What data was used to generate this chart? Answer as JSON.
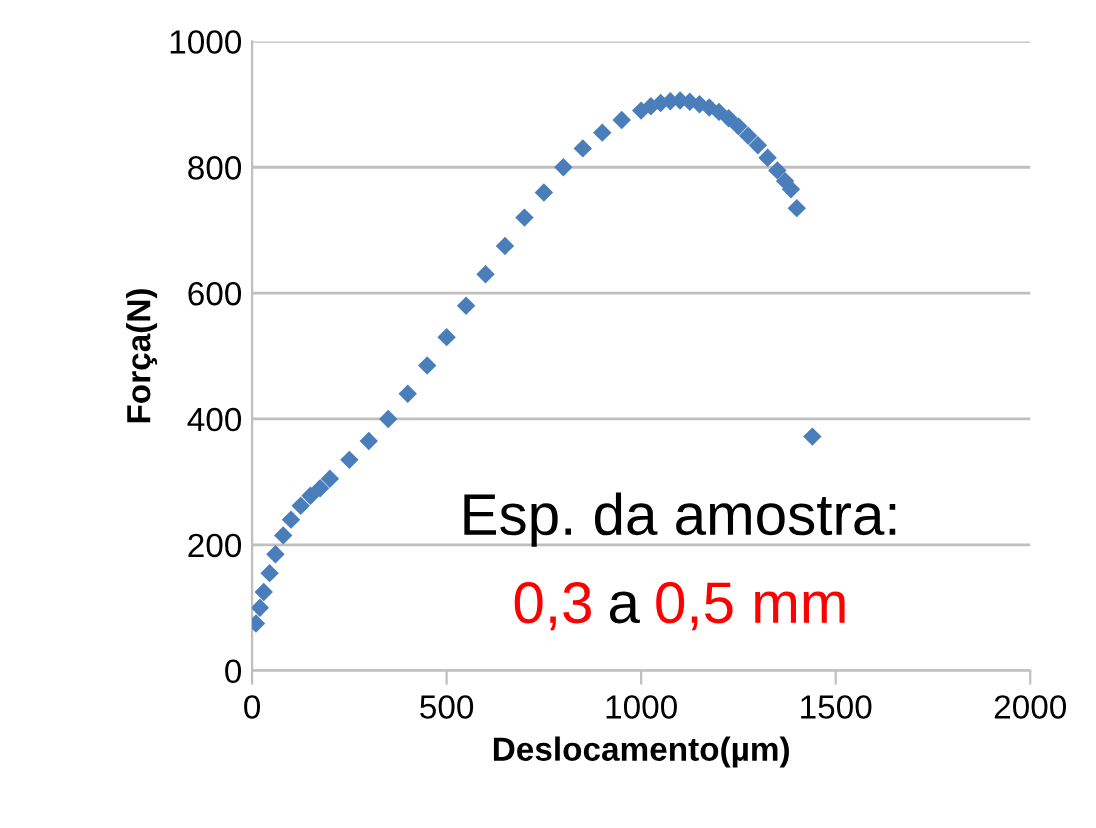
{
  "chart_data": {
    "type": "scatter",
    "xlabel": "Deslocamento(µm)",
    "ylabel": "Força(N)",
    "xlim": [
      0,
      2000
    ],
    "xticks": [
      0,
      500,
      1000,
      1500,
      2000
    ],
    "ylim": [
      0,
      1000
    ],
    "yticks": [
      0,
      200,
      400,
      600,
      800,
      1000
    ],
    "grid": "y",
    "marker": "diamond",
    "legend": false,
    "annotations": [
      "Esp. da amostra:",
      "0,3",
      "a",
      "0,5 mm"
    ],
    "series": [
      {
        "color": "#4a7ebb",
        "x": [
          10,
          20,
          30,
          45,
          60,
          80,
          100,
          125,
          150,
          175,
          200,
          250,
          300,
          350,
          400,
          450,
          500,
          550,
          600,
          650,
          700,
          750,
          800,
          850,
          900,
          950,
          1000,
          1025,
          1050,
          1075,
          1100,
          1125,
          1150,
          1175,
          1200,
          1225,
          1250,
          1275,
          1300,
          1325,
          1350,
          1370,
          1385,
          1400,
          1440
        ],
        "values": [
          75,
          100,
          125,
          155,
          185,
          215,
          240,
          262,
          278,
          290,
          305,
          335,
          365,
          400,
          440,
          485,
          530,
          580,
          630,
          675,
          720,
          760,
          800,
          830,
          855,
          875,
          890,
          897,
          902,
          905,
          906,
          904,
          900,
          895,
          888,
          878,
          865,
          850,
          835,
          815,
          795,
          778,
          765,
          735,
          372
        ]
      }
    ]
  }
}
